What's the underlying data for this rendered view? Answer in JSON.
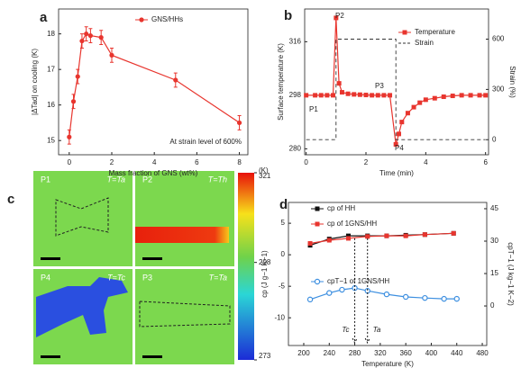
{
  "chart_data": [
    {
      "type": "line",
      "label": "a",
      "xlabel": "Mass fraction of GNS (wt%)",
      "ylabel": "|ΔTad| on cooling (K)",
      "xlim": [
        -0.5,
        8.4
      ],
      "ylim": [
        14.6,
        18.7
      ],
      "xticks": [
        0,
        2,
        4,
        6,
        8
      ],
      "yticks": [
        15,
        16,
        17,
        18
      ],
      "legend": "upper right",
      "annotations": [
        "At strain level of 600%"
      ],
      "x": [
        0,
        0.2,
        0.4,
        0.6,
        0.8,
        1,
        1.5,
        2,
        5,
        8
      ],
      "series": [
        {
          "name": "GNS/HHs",
          "color": "#e8352e",
          "marker": "circle",
          "values": [
            15.1,
            16.1,
            16.8,
            17.8,
            18.0,
            17.95,
            17.9,
            17.4,
            16.7,
            15.5
          ],
          "errors": [
            0.2,
            0.2,
            0.2,
            0.2,
            0.2,
            0.2,
            0.2,
            0.2,
            0.2,
            0.2
          ]
        }
      ]
    },
    {
      "type": "line",
      "label": "b",
      "xlabel": "Time (min)",
      "ylabel": "Surface temperature (K)",
      "y2label": "Strain (%)",
      "xlim": [
        -0.05,
        6.1
      ],
      "ylim": [
        278,
        327
      ],
      "y2lim": [
        -90,
        780
      ],
      "xticks": [
        0,
        2,
        4,
        6
      ],
      "yticks": [
        280,
        298,
        316
      ],
      "y2ticks": [
        0,
        300,
        600
      ],
      "legend": "upper right",
      "annotations": [
        "P1",
        "P2",
        "P3",
        "P4"
      ],
      "series": [
        {
          "name": "Temperature",
          "color": "#e8352e",
          "marker": "square",
          "x": [
            0,
            0.3,
            0.5,
            0.7,
            0.9,
            1.0,
            1.1,
            1.2,
            1.4,
            1.6,
            1.8,
            2.0,
            2.2,
            2.4,
            2.6,
            2.8,
            3.0,
            3.1,
            3.2,
            3.4,
            3.6,
            3.8,
            4.0,
            4.3,
            4.6,
            4.9,
            5.2,
            5.5,
            5.8,
            6.0
          ],
          "values": [
            298,
            298,
            298,
            298,
            298,
            324,
            302,
            299,
            298.5,
            298.3,
            298.2,
            298.1,
            298,
            298,
            298,
            298,
            281.5,
            285,
            289,
            292,
            294,
            295.5,
            296.5,
            297,
            297.5,
            297.8,
            298,
            298,
            298,
            298
          ]
        },
        {
          "name": "Strain",
          "color": "#333333",
          "dash": true,
          "axis": "y2",
          "x": [
            0,
            1,
            1,
            3,
            3,
            6
          ],
          "values": [
            0,
            0,
            600,
            600,
            0,
            0
          ]
        }
      ]
    },
    {
      "type": "line",
      "label": "d",
      "xlabel": "Temperature (K)",
      "ylabel": "cp (J g−1 K−1)",
      "y2label": "cpT−1 (J kg−1 K−2)",
      "xlim": [
        176,
        487
      ],
      "ylim": [
        -14.4,
        8.3
      ],
      "y2lim": [
        -18.3,
        47.9
      ],
      "xticks": [
        200,
        240,
        280,
        320,
        360,
        400,
        440,
        480
      ],
      "yticks": [
        -10,
        -5,
        0,
        5
      ],
      "y2ticks": [
        0,
        15,
        30,
        45
      ],
      "legend": "upper left",
      "arrows": [
        {
          "label": "Tc",
          "x": 280
        },
        {
          "label": "Ta",
          "x": 300
        }
      ],
      "series": [
        {
          "name": "cp of HH",
          "color": "#111111",
          "marker": "square",
          "x": [
            210,
            240,
            270,
            300,
            330,
            360,
            390,
            435
          ],
          "values": [
            1.5,
            2.5,
            3.0,
            3.0,
            3.0,
            3.1,
            3.2,
            3.4
          ]
        },
        {
          "name": "cp of 1GNS/HH",
          "color": "#e8352e",
          "marker": "square",
          "x": [
            210,
            240,
            270,
            300,
            330,
            360,
            390,
            435
          ],
          "values": [
            1.8,
            2.3,
            2.6,
            2.9,
            3.0,
            3.0,
            3.2,
            3.4
          ]
        },
        {
          "name": "cpT−1 of 1GNS/HH",
          "color": "#3d8fe0",
          "marker": "open-circle",
          "axis": "y2",
          "x": [
            210,
            240,
            260,
            280,
            300,
            330,
            360,
            390,
            420,
            440
          ],
          "values": [
            3,
            6,
            7.5,
            8.3,
            7,
            5.4,
            4.2,
            3.7,
            3.3,
            3.3
          ]
        }
      ]
    }
  ],
  "thermal_images": {
    "label": "c",
    "panels": [
      {
        "name": "P1",
        "condition": "T=Ta"
      },
      {
        "name": "P2",
        "condition": "T=Th"
      },
      {
        "name": "P4",
        "condition": "T=Tc"
      },
      {
        "name": "P3",
        "condition": "T=Ta"
      }
    ],
    "colorbar": {
      "unit": "(K)",
      "ticks": [
        321,
        298,
        273
      ],
      "range": [
        273,
        321
      ]
    }
  }
}
